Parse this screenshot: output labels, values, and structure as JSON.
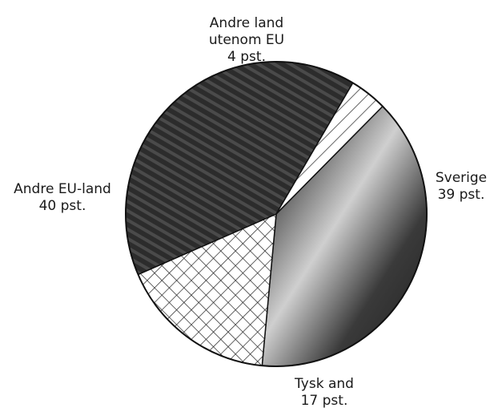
{
  "chart_data": {
    "type": "pie",
    "title": "",
    "slices": [
      {
        "label": "Sverige",
        "value": 39,
        "value_label": "39 pst.",
        "fill": "#3a3a3a",
        "pattern": "dark-gradient"
      },
      {
        "label": "Tyskland",
        "label_lines": [
          "Tysk and"
        ],
        "value": 17,
        "value_label": "17 pst.",
        "fill": "#ffffff",
        "pattern": "crosshatch"
      },
      {
        "label": "Andre EU-land",
        "label_lines": [
          "Andre EU-land"
        ],
        "value": 40,
        "value_label": "40 pst.",
        "fill": "#303030",
        "pattern": "dark-stripes"
      },
      {
        "label": "Andre land utenom EU",
        "label_lines": [
          "Andre land",
          "utenom EU"
        ],
        "value": 4,
        "value_label": "4 pst.",
        "fill": "#ffffff",
        "pattern": "diagonal-hatch"
      }
    ],
    "start_angle_deg": 45,
    "direction": "clockwise",
    "colors": {
      "dark": "#2c2c2c",
      "mid": "#8a8a8a",
      "light": "#e8e8e8",
      "edge": "#111111"
    }
  }
}
